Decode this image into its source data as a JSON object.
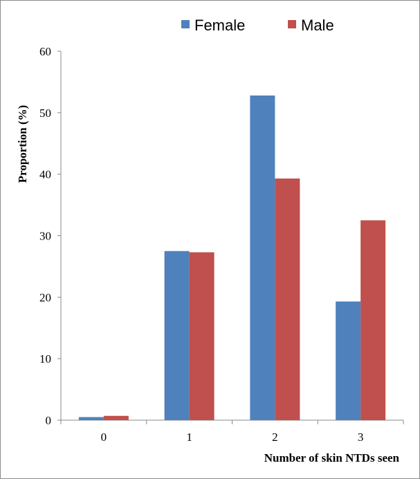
{
  "chart_data": {
    "type": "bar",
    "title": "",
    "xlabel": "Number of  skin NTDs seen",
    "ylabel": "Proportion (%)",
    "categories": [
      "0",
      "1",
      "2",
      "3"
    ],
    "ylim": [
      0,
      60
    ],
    "yticks": [
      "0",
      "10",
      "20",
      "30",
      "40",
      "50",
      "60"
    ],
    "series": [
      {
        "name": "Female",
        "color": "#4F81BD",
        "values": [
          0.5,
          27.5,
          52.8,
          19.3
        ]
      },
      {
        "name": "Male",
        "color": "#C0504D",
        "values": [
          0.7,
          27.3,
          39.3,
          32.5
        ]
      }
    ],
    "grid": false,
    "legend_position": "top"
  }
}
